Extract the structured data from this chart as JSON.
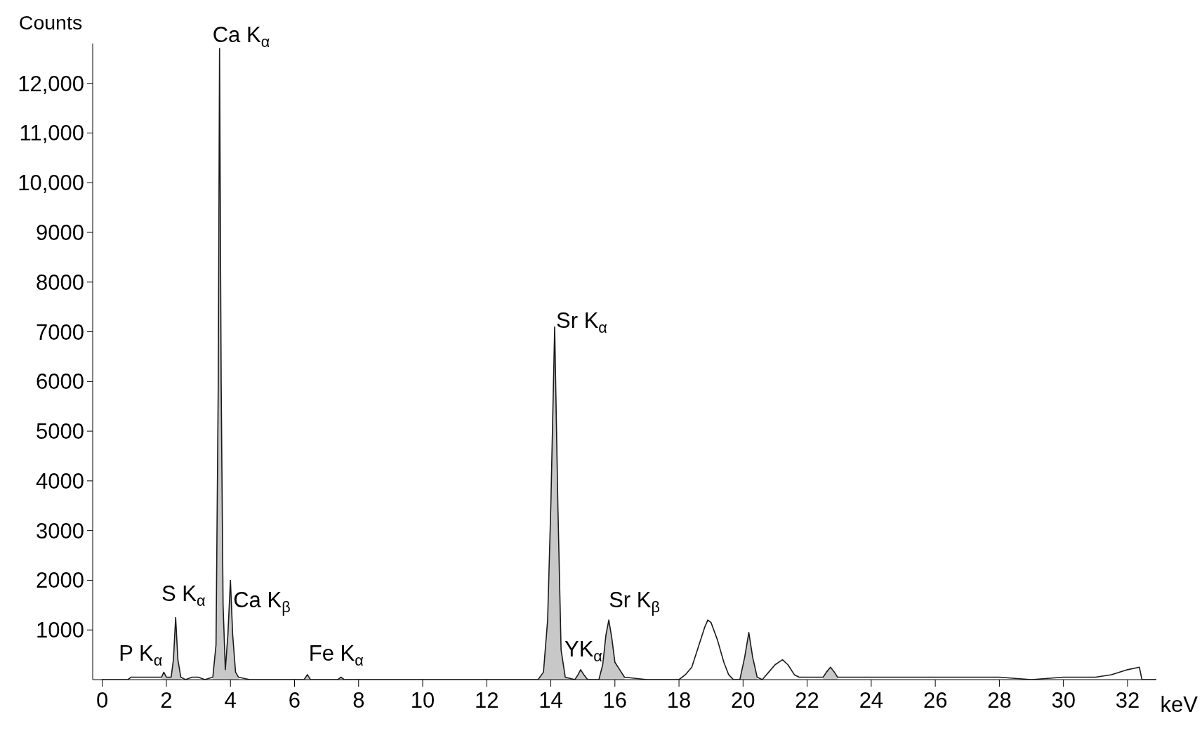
{
  "chart_data": {
    "type": "line",
    "xlabel": "keV",
    "ylabel": "Counts",
    "x": [
      0,
      0.5,
      0.8,
      0.9,
      1.0,
      1.1,
      1.3,
      1.5,
      1.7,
      1.85,
      1.92,
      2.0,
      2.15,
      2.22,
      2.29,
      2.36,
      2.45,
      2.6,
      2.8,
      3.0,
      3.2,
      3.45,
      3.55,
      3.62,
      3.66,
      3.71,
      3.77,
      3.84,
      3.92,
      4.0,
      4.07,
      4.16,
      4.25,
      4.6,
      5.5,
      6.3,
      6.4,
      6.5,
      7.35,
      7.45,
      7.55,
      8.5,
      10,
      12,
      13.6,
      13.77,
      13.9,
      14.0,
      14.12,
      14.22,
      14.32,
      14.45,
      14.75,
      14.85,
      14.93,
      15.03,
      15.15,
      15.5,
      15.62,
      15.72,
      15.81,
      15.9,
      16.0,
      16.15,
      16.3,
      17,
      18.0,
      18.2,
      18.4,
      18.6,
      18.8,
      18.9,
      19.0,
      19.2,
      19.4,
      19.55,
      19.7,
      19.9,
      20.05,
      20.18,
      20.3,
      20.44,
      20.6,
      20.8,
      21.0,
      21.23,
      21.4,
      21.6,
      21.75,
      22.5,
      22.6,
      22.73,
      22.85,
      22.95,
      24,
      25,
      26,
      27,
      28,
      29,
      30,
      31,
      31.5,
      32,
      32.37,
      32.45,
      32.9
    ],
    "series": [
      {
        "color": "#1a1a1a",
        "values": [
          0,
          0,
          0,
          50,
          50,
          50,
          50,
          50,
          50,
          50,
          150,
          50,
          50,
          400,
          1250,
          400,
          50,
          0,
          50,
          50,
          0,
          50,
          700,
          6000,
          12700,
          6000,
          1500,
          200,
          900,
          2000,
          900,
          150,
          50,
          0,
          0,
          0,
          100,
          0,
          0,
          50,
          0,
          0,
          0,
          0,
          0,
          150,
          1200,
          3500,
          7100,
          3500,
          600,
          50,
          0,
          100,
          200,
          100,
          0,
          0,
          300,
          900,
          1200,
          850,
          350,
          200,
          50,
          0,
          0,
          100,
          250,
          650,
          1050,
          1200,
          1150,
          800,
          350,
          100,
          0,
          0,
          450,
          950,
          450,
          50,
          0,
          150,
          300,
          400,
          300,
          100,
          50,
          50,
          150,
          250,
          150,
          50,
          50,
          50,
          50,
          50,
          50,
          0,
          50,
          50,
          100,
          200,
          250,
          0,
          0
        ]
      },
      {
        "type": "area",
        "color": "#c8c8c8",
        "values": [
          null,
          null,
          null,
          null,
          null,
          null,
          null,
          null,
          null,
          50,
          150,
          50,
          50,
          400,
          1250,
          400,
          50,
          null,
          null,
          null,
          null,
          50,
          700,
          6000,
          12700,
          6000,
          1500,
          200,
          900,
          2000,
          900,
          150,
          50,
          null,
          null,
          0,
          100,
          0,
          0,
          50,
          0,
          null,
          null,
          null,
          0,
          150,
          1200,
          3500,
          7100,
          3500,
          600,
          50,
          0,
          100,
          200,
          100,
          0,
          0,
          300,
          900,
          1200,
          850,
          350,
          200,
          50,
          null,
          null,
          null,
          null,
          null,
          null,
          null,
          null,
          null,
          null,
          null,
          null,
          0,
          450,
          950,
          450,
          50,
          null,
          null,
          null,
          null,
          null,
          null,
          null,
          50,
          150,
          250,
          150,
          50,
          null,
          null,
          null,
          null,
          null,
          null,
          null,
          null,
          null,
          null,
          null,
          null,
          null
        ]
      }
    ],
    "xlim": [
      -0.3,
      32.9
    ],
    "xticks": [
      0,
      2,
      4,
      6,
      8,
      10,
      12,
      14,
      16,
      18,
      20,
      22,
      24,
      26,
      28,
      30,
      32
    ],
    "ylim": [
      0,
      12800
    ],
    "yticks": [
      1000,
      2000,
      3000,
      4000,
      5000,
      6000,
      7000,
      8000,
      9000,
      {
        "value": 10000,
        "label": "10,000"
      },
      {
        "value": 11000,
        "label": "11,000"
      },
      {
        "value": 12000,
        "label": "12,000"
      }
    ],
    "annotations": [
      {
        "text": "Ca K$_{α}$",
        "x": 3.66,
        "y": 12700
      },
      {
        "text": "Sr K$_{α}$",
        "x": 14.12,
        "y": 7100
      },
      {
        "text": "S K$_{α}$",
        "x": 2.29,
        "y": 1250
      },
      {
        "text": "Ca K$_{β}$",
        "x": 4.0,
        "y": 2000
      },
      {
        "text": "Sr K$_{β}$",
        "x": 15.81,
        "y": 1200
      },
      {
        "text": "YK$_{α}$",
        "x": 14.93,
        "y": 200
      },
      {
        "text": "Fe K$_{α}$",
        "x": 6.4,
        "y": 90
      },
      {
        "text": "P K$_{α}$",
        "x": 1.92,
        "y": 140
      }
    ]
  }
}
